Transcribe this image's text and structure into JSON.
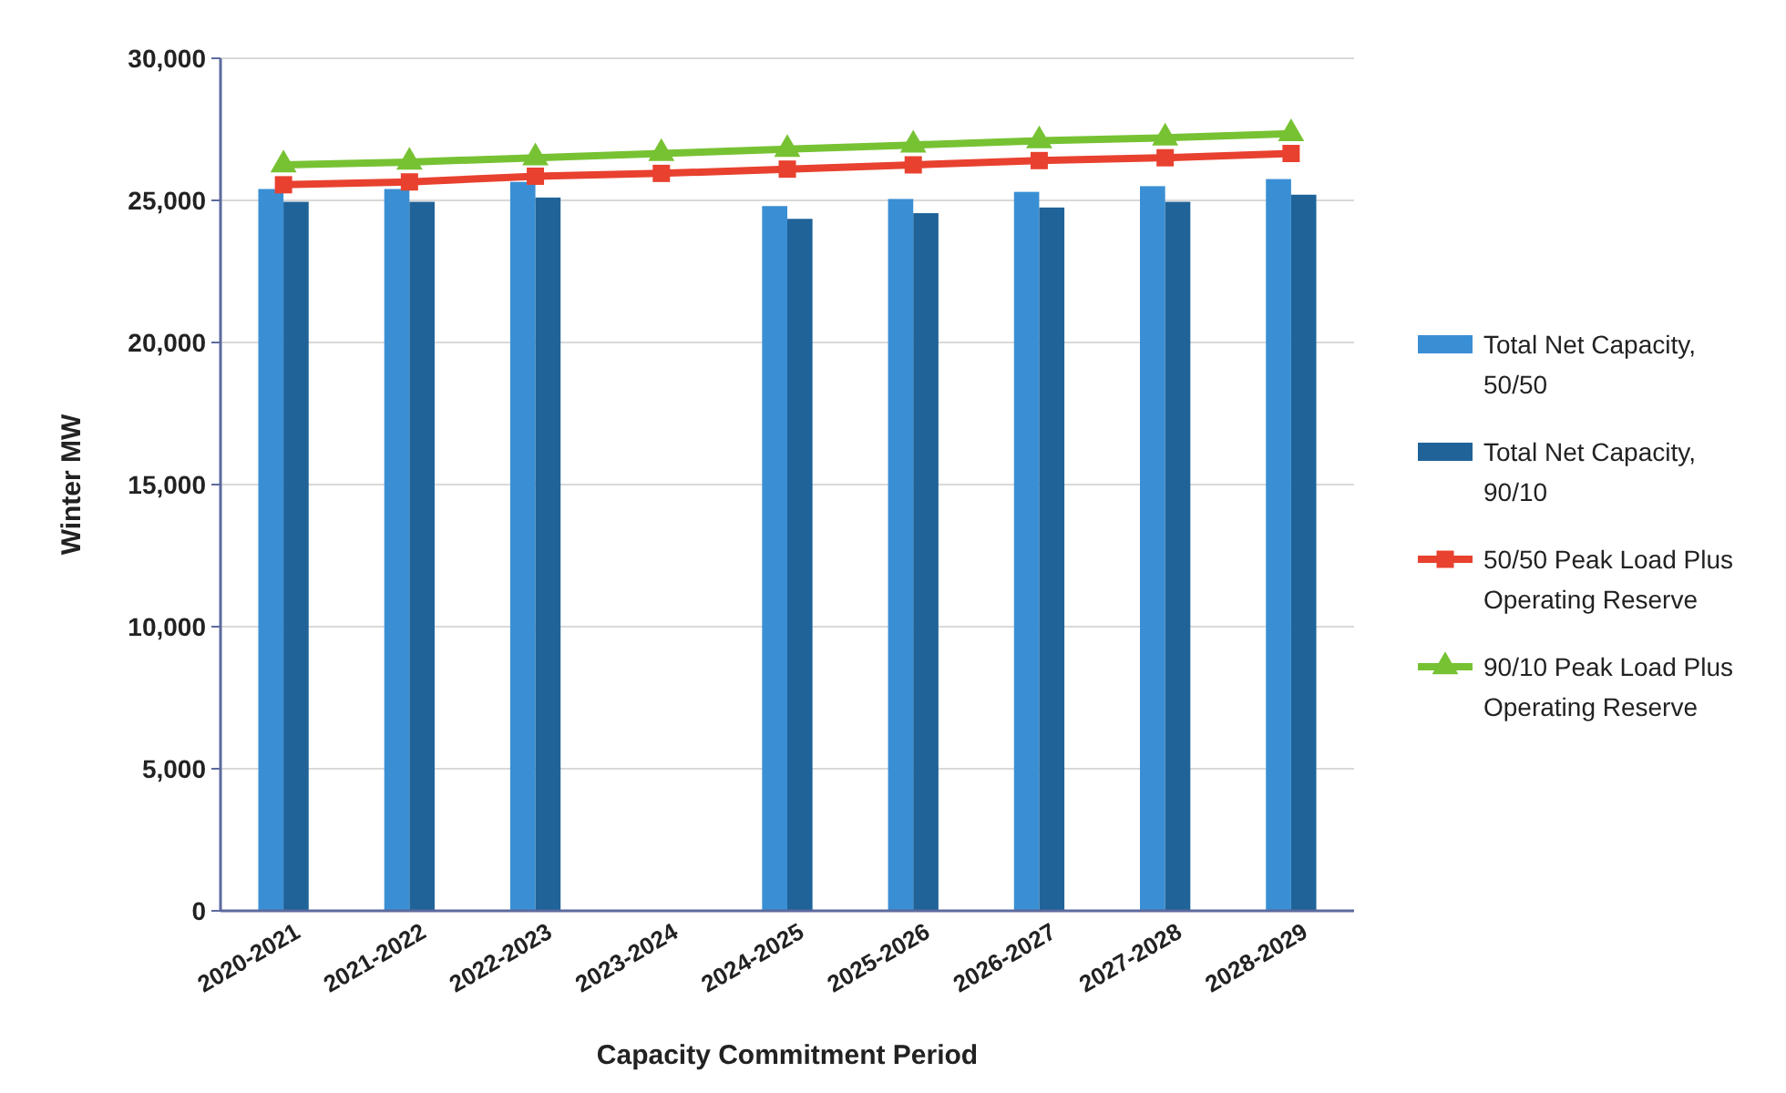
{
  "chart_data": {
    "type": "bar",
    "xlabel": "Capacity Commitment Period",
    "ylabel": "Winter MW",
    "categories": [
      "2020-2021",
      "2021-2022",
      "2022-2023",
      "2023-2024",
      "2024-2025",
      "2025-2026",
      "2026-2027",
      "2027-2028",
      "2028-2029"
    ],
    "series": [
      {
        "name": "Total Net Capacity, 50/50",
        "color": "#3a8fd4",
        "values": [
          25400,
          25400,
          25650,
          null,
          24800,
          25050,
          25300,
          25500,
          25750
        ]
      },
      {
        "name": "Total Net Capacity, 90/10",
        "color": "#1f6399",
        "values": [
          24950,
          24950,
          25100,
          null,
          24350,
          24550,
          24750,
          24950,
          25200
        ]
      },
      {
        "name": "50/50 Peak Load Plus Operating Reserve",
        "type": "line",
        "marker": "square",
        "color": "#e8412f",
        "values": [
          25550,
          25650,
          25850,
          25950,
          26100,
          26250,
          26400,
          26500,
          26650
        ]
      },
      {
        "name": "90/10 Peak Load Plus Operating Reserve",
        "type": "line",
        "marker": "triangle",
        "color": "#77c233",
        "values": [
          26250,
          26350,
          26500,
          26650,
          26800,
          26950,
          27100,
          27200,
          27350
        ]
      }
    ],
    "ylim": [
      0,
      30000
    ],
    "yticks": [
      {
        "value": 0,
        "label": "0"
      },
      {
        "value": 5000,
        "label": "5,000"
      },
      {
        "value": 10000,
        "label": "10,000"
      },
      {
        "value": 15000,
        "label": "15,000"
      },
      {
        "value": 20000,
        "label": "20,000"
      },
      {
        "value": 25000,
        "label": "25,000"
      },
      {
        "value": 30000,
        "label": "30,000"
      }
    ],
    "grid": "y",
    "legend": "right"
  }
}
